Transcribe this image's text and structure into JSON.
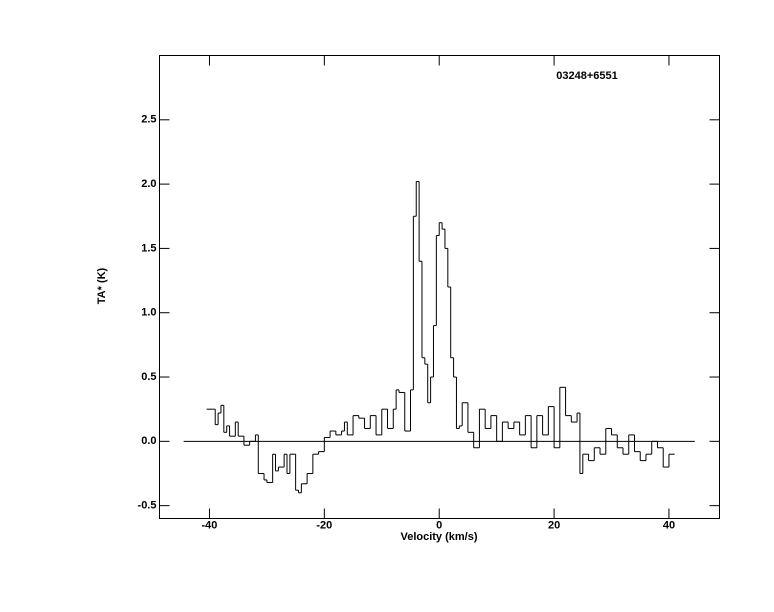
{
  "chart_data": {
    "type": "step",
    "title": "03248+6551",
    "x_label": "Velocity (km/s)",
    "y_label": "TA* (K)",
    "xlim": [
      -48.7,
      48.8
    ],
    "ylim": [
      -0.6,
      3.0
    ],
    "xticks": [
      -40,
      -20,
      0,
      20,
      40
    ],
    "yticks": [
      -0.5,
      {
        "value": 0,
        "label": "0.0"
      },
      0.5,
      {
        "value": 1,
        "label": "1.0"
      },
      1.5,
      {
        "value": 2,
        "label": "2.0"
      },
      2.5
    ],
    "baseline": {
      "x": [
        -44.5,
        44.5
      ],
      "value": 0
    },
    "color": "#000000",
    "x": [
      -40.5,
      -39.5,
      -39,
      -38.5,
      -38,
      -37.5,
      -37,
      -36.5,
      -36,
      -35.5,
      -35,
      -34,
      -33,
      -32,
      -31.5,
      -30.5,
      -30,
      -29,
      -28.5,
      -28,
      -27,
      -26.5,
      -26,
      -25,
      -24.5,
      -24,
      -23,
      -22,
      -21,
      -20,
      -19,
      -18,
      -17,
      -16.5,
      -16,
      -15,
      -14,
      -13,
      -12,
      -11,
      -10,
      -9,
      -8,
      -7.5,
      -7,
      -6,
      -5,
      -4.5,
      -4,
      -3.5,
      -3,
      -2.5,
      -2,
      -1.5,
      -1,
      -0.5,
      0,
      0.5,
      1,
      1.5,
      2,
      2.5,
      3,
      3.5,
      4,
      5,
      6,
      7,
      8,
      9,
      10,
      11,
      12,
      13,
      14,
      15,
      16,
      17,
      18,
      19,
      20,
      21,
      22,
      23,
      24,
      24.5,
      25,
      26,
      27,
      28,
      29,
      30,
      31,
      32,
      33,
      34,
      35,
      36,
      37,
      38,
      39,
      40
    ],
    "values": [
      0.25,
      0.25,
      0.13,
      0.22,
      0.28,
      0.07,
      0.12,
      0.04,
      0.04,
      0.15,
      0.04,
      -0.03,
      0.0,
      0.05,
      -0.25,
      -0.3,
      -0.32,
      -0.1,
      -0.23,
      -0.2,
      -0.1,
      -0.25,
      -0.1,
      -0.38,
      -0.4,
      -0.33,
      -0.25,
      -0.1,
      -0.08,
      0.03,
      0.08,
      0.05,
      0.08,
      0.15,
      0.05,
      0.2,
      0.18,
      0.1,
      0.2,
      0.05,
      0.25,
      0.1,
      0.25,
      0.4,
      0.38,
      0.08,
      0.4,
      1.75,
      2.02,
      1.4,
      0.65,
      0.6,
      0.3,
      0.5,
      0.9,
      1.6,
      1.7,
      1.65,
      1.5,
      1.2,
      0.65,
      0.5,
      0.1,
      0.12,
      0.3,
      0.07,
      -0.05,
      0.25,
      0.1,
      0.2,
      0.0,
      0.15,
      0.1,
      0.15,
      0.05,
      0.2,
      -0.05,
      0.2,
      0.05,
      0.27,
      -0.05,
      0.42,
      0.2,
      0.15,
      0.22,
      -0.25,
      -0.1,
      -0.15,
      -0.05,
      -0.1,
      0.1,
      0.05,
      -0.05,
      -0.1,
      0.05,
      -0.08,
      -0.15,
      -0.1,
      0.0,
      -0.05,
      -0.2,
      -0.1
    ]
  }
}
